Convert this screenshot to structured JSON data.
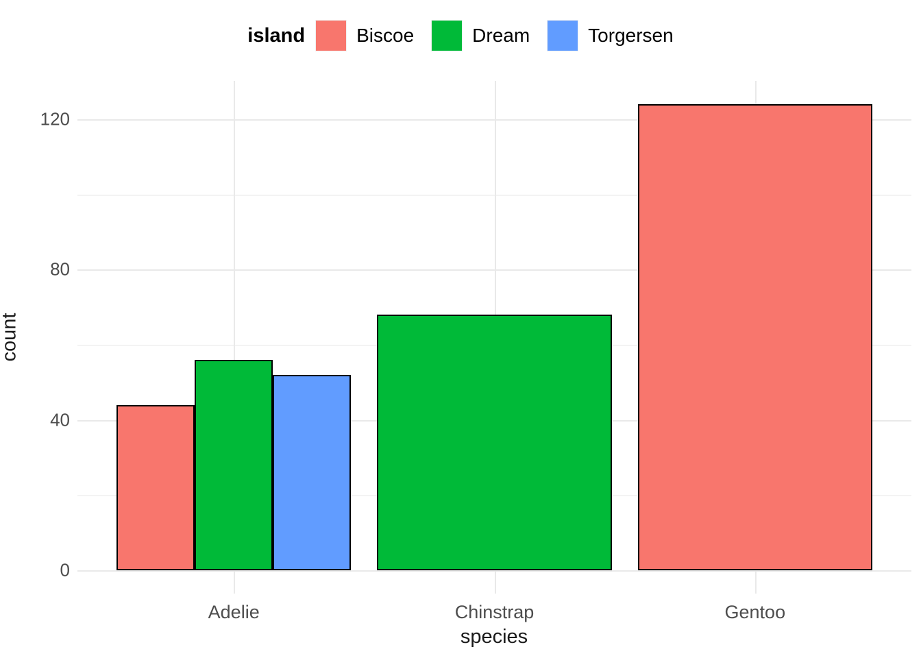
{
  "chart_data": {
    "type": "bar",
    "title": "",
    "xlabel": "species",
    "ylabel": "count",
    "categories": [
      "Adelie",
      "Chinstrap",
      "Gentoo"
    ],
    "series": [
      {
        "name": "Biscoe",
        "color": "#F8766D",
        "values": [
          44,
          null,
          124
        ]
      },
      {
        "name": "Dream",
        "color": "#00BA38",
        "values": [
          56,
          68,
          null
        ]
      },
      {
        "name": "Torgersen",
        "color": "#619CFF",
        "values": [
          52,
          null,
          null
        ]
      }
    ],
    "legend_title": "island",
    "legend_position": "top",
    "bar_outline_color": "#000000",
    "position": "dodge",
    "grid": true,
    "ylim": [
      -6.2,
      130.2
    ],
    "yticks": [
      0,
      40,
      80,
      120
    ],
    "yticks_minor": [
      20,
      60,
      100
    ],
    "ytick_labels": [
      "0",
      "40",
      "80",
      "120"
    ]
  }
}
